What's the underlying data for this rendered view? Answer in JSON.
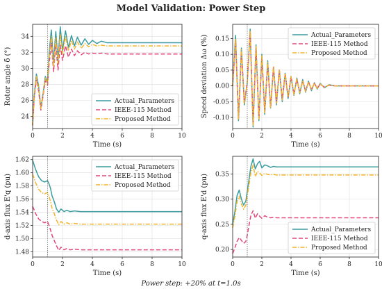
{
  "title": "Model Validation: Power Step",
  "footnote": "Power step: +20% at t=1.0s",
  "colors": {
    "actual": "#3a9ca0",
    "ieee": "#e3467a",
    "proposed": "#f5b42a",
    "vline": "#666666",
    "grid": "#dddddd"
  },
  "legend": [
    "Actual_Parameters",
    "IEEE-115 Method",
    "Proposed Method"
  ],
  "chart_data": [
    {
      "type": "line",
      "title": "",
      "xlabel": "Time (s)",
      "ylabel": "Rotor angle δ (°)",
      "xlim": [
        0,
        10
      ],
      "ylim": [
        22.5,
        35.5
      ],
      "xticks": [
        0,
        2,
        4,
        6,
        8,
        10
      ],
      "yticks": [
        24,
        26,
        28,
        30,
        32,
        34
      ],
      "ytick_labels": [
        "24",
        "26",
        "28",
        "30",
        "32",
        "34"
      ],
      "vline": 1.0,
      "grid": true,
      "legend_position": "lower-right",
      "series": [
        {
          "name": "Actual_Parameters",
          "color_key": "actual",
          "dash": "solid",
          "x": [
            0,
            0.1,
            0.25,
            0.4,
            0.55,
            0.7,
            0.85,
            1.0,
            1.1,
            1.25,
            1.4,
            1.55,
            1.7,
            1.85,
            2.0,
            2.2,
            2.4,
            2.6,
            2.8,
            3.0,
            3.25,
            3.5,
            3.75,
            4.0,
            4.3,
            4.6,
            5.0,
            6,
            7,
            8,
            9,
            10
          ],
          "y": [
            22.9,
            26.5,
            29.3,
            27.8,
            25.1,
            26.9,
            29.0,
            28.3,
            31.8,
            34.8,
            30.8,
            34.6,
            31.0,
            35.2,
            32.2,
            34.7,
            32.6,
            34.1,
            32.8,
            33.9,
            32.9,
            33.7,
            33.0,
            33.5,
            33.1,
            33.4,
            33.2,
            33.2,
            33.2,
            33.2,
            33.2,
            33.2
          ]
        },
        {
          "name": "IEEE-115 Method",
          "color_key": "ieee",
          "dash": "dashed",
          "x": [
            0,
            0.1,
            0.25,
            0.4,
            0.55,
            0.7,
            0.85,
            1.0,
            1.1,
            1.25,
            1.4,
            1.55,
            1.7,
            1.85,
            2.0,
            2.2,
            2.4,
            2.6,
            2.8,
            3.0,
            3.25,
            3.5,
            3.75,
            4.0,
            4.3,
            4.6,
            5.0,
            6,
            7,
            8,
            9,
            10
          ],
          "y": [
            22.9,
            26.1,
            28.7,
            27.2,
            24.8,
            26.6,
            28.5,
            27.9,
            30.5,
            33.2,
            29.6,
            33.0,
            29.8,
            32.9,
            31.0,
            32.8,
            31.4,
            32.4,
            31.6,
            32.2,
            31.7,
            32.0,
            31.8,
            31.9,
            31.8,
            31.9,
            31.8,
            31.8,
            31.8,
            31.8,
            31.8,
            31.8
          ]
        },
        {
          "name": "Proposed Method",
          "color_key": "proposed",
          "dash": "dashdot",
          "x": [
            0,
            0.1,
            0.25,
            0.4,
            0.55,
            0.7,
            0.85,
            1.0,
            1.1,
            1.25,
            1.4,
            1.55,
            1.7,
            1.85,
            2.0,
            2.2,
            2.4,
            2.6,
            2.8,
            3.0,
            3.25,
            3.5,
            3.75,
            4.0,
            4.3,
            4.6,
            5.0,
            6,
            7,
            8,
            9,
            10
          ],
          "y": [
            22.9,
            26.3,
            29.0,
            27.5,
            25.0,
            26.8,
            28.8,
            28.1,
            31.2,
            34.0,
            30.2,
            33.8,
            30.6,
            34.2,
            31.8,
            34.0,
            32.2,
            33.5,
            32.4,
            33.3,
            32.5,
            33.1,
            32.7,
            33.0,
            32.8,
            32.9,
            32.8,
            32.8,
            32.8,
            32.8,
            32.8,
            32.8
          ]
        }
      ]
    },
    {
      "type": "line",
      "title": "",
      "xlabel": "Time (s)",
      "ylabel": "Speed deviation Δω (%)",
      "xlim": [
        0,
        10
      ],
      "ylim": [
        -0.135,
        0.195
      ],
      "xticks": [
        0,
        2,
        4,
        6,
        8,
        10
      ],
      "yticks": [
        -0.1,
        -0.05,
        0.0,
        0.05,
        0.1,
        0.15
      ],
      "ytick_labels": [
        "-0.10",
        "-0.05",
        "0.00",
        "0.05",
        "0.10",
        "0.15"
      ],
      "vline": 1.0,
      "grid": true,
      "legend_position": "top-right",
      "series": [
        {
          "name": "Actual_Parameters",
          "color_key": "actual",
          "dash": "solid",
          "x": [
            0,
            0.2,
            0.4,
            0.6,
            0.8,
            1.0,
            1.2,
            1.4,
            1.6,
            1.8,
            2.0,
            2.2,
            2.4,
            2.6,
            2.8,
            3.0,
            3.2,
            3.4,
            3.6,
            3.8,
            4.0,
            4.2,
            4.4,
            4.6,
            4.8,
            5.0,
            5.2,
            5.4,
            5.6,
            5.8,
            6.0,
            6.3,
            6.6,
            7.0,
            7.5,
            8,
            9,
            10
          ],
          "y": [
            0.0,
            0.16,
            -0.11,
            0.12,
            -0.06,
            0.01,
            0.18,
            -0.13,
            0.13,
            -0.11,
            0.1,
            -0.09,
            0.08,
            -0.07,
            0.06,
            -0.06,
            0.05,
            -0.05,
            0.04,
            -0.04,
            0.03,
            -0.03,
            0.025,
            -0.025,
            0.02,
            -0.02,
            0.015,
            -0.015,
            0.01,
            -0.01,
            0.008,
            -0.006,
            0.004,
            0.0,
            0.0,
            0.0,
            0.0,
            0.0
          ]
        },
        {
          "name": "IEEE-115 Method",
          "color_key": "ieee",
          "dash": "dashed",
          "x": [
            0,
            0.2,
            0.4,
            0.6,
            0.8,
            1.0,
            1.2,
            1.4,
            1.6,
            1.8,
            2.0,
            2.2,
            2.4,
            2.6,
            2.8,
            3.0,
            3.2,
            3.4,
            3.6,
            3.8,
            4.0,
            4.2,
            4.4,
            4.6,
            4.8,
            5.0,
            5.2,
            5.4,
            5.6,
            5.8,
            6.0,
            6.3,
            6.6,
            7.0,
            7.5,
            8,
            9,
            10
          ],
          "y": [
            0.0,
            0.14,
            -0.1,
            0.11,
            -0.05,
            0.01,
            0.17,
            -0.12,
            0.12,
            -0.1,
            0.09,
            -0.08,
            0.07,
            -0.07,
            0.06,
            -0.05,
            0.05,
            -0.04,
            0.04,
            -0.035,
            0.03,
            -0.025,
            0.02,
            -0.02,
            0.015,
            -0.015,
            0.012,
            -0.01,
            0.008,
            -0.006,
            0.005,
            -0.004,
            0.002,
            0.0,
            0.0,
            0.0,
            0.0,
            0.0
          ]
        },
        {
          "name": "Proposed Method",
          "color_key": "proposed",
          "dash": "dashdot",
          "x": [
            0,
            0.2,
            0.4,
            0.6,
            0.8,
            1.0,
            1.2,
            1.4,
            1.6,
            1.8,
            2.0,
            2.2,
            2.4,
            2.6,
            2.8,
            3.0,
            3.2,
            3.4,
            3.6,
            3.8,
            4.0,
            4.2,
            4.4,
            4.6,
            4.8,
            5.0,
            5.2,
            5.4,
            5.6,
            5.8,
            6.0,
            6.3,
            6.6,
            7.0,
            7.5,
            8,
            9,
            10
          ],
          "y": [
            0.0,
            0.15,
            -0.105,
            0.115,
            -0.055,
            0.01,
            0.175,
            -0.125,
            0.125,
            -0.105,
            0.095,
            -0.085,
            0.075,
            -0.07,
            0.06,
            -0.055,
            0.05,
            -0.045,
            0.04,
            -0.035,
            0.03,
            -0.028,
            0.022,
            -0.022,
            0.018,
            -0.018,
            0.013,
            -0.012,
            0.009,
            -0.008,
            0.006,
            -0.005,
            0.003,
            0.0,
            0.0,
            0.0,
            0.0,
            0.0
          ]
        }
      ]
    },
    {
      "type": "line",
      "title": "",
      "xlabel": "Time (s)",
      "ylabel": "d-axis flux E'q (pu)",
      "xlim": [
        0,
        10
      ],
      "ylim": [
        1.472,
        1.625
      ],
      "xticks": [
        0,
        2,
        4,
        6,
        8,
        10
      ],
      "yticks": [
        1.48,
        1.5,
        1.52,
        1.54,
        1.56,
        1.58,
        1.6,
        1.62
      ],
      "ytick_labels": [
        "1.48",
        "1.50",
        "1.52",
        "1.54",
        "1.56",
        "1.58",
        "1.60",
        "1.62"
      ],
      "vline": 1.0,
      "grid": true,
      "legend_position": "top-right",
      "series": [
        {
          "name": "Actual_Parameters",
          "color_key": "actual",
          "dash": "solid",
          "x": [
            0,
            0.2,
            0.4,
            0.6,
            0.8,
            1.0,
            1.1,
            1.2,
            1.3,
            1.45,
            1.6,
            1.75,
            1.9,
            2.1,
            2.3,
            2.5,
            2.8,
            3.2,
            3.6,
            4.0,
            5,
            6,
            7,
            8,
            9,
            10
          ],
          "y": [
            1.619,
            1.605,
            1.594,
            1.588,
            1.586,
            1.588,
            1.583,
            1.576,
            1.565,
            1.556,
            1.545,
            1.54,
            1.545,
            1.541,
            1.543,
            1.541,
            1.542,
            1.541,
            1.541,
            1.541,
            1.541,
            1.541,
            1.541,
            1.541,
            1.541,
            1.541
          ]
        },
        {
          "name": "IEEE-115 Method",
          "color_key": "ieee",
          "dash": "dashed",
          "x": [
            0,
            0.2,
            0.4,
            0.6,
            0.8,
            1.0,
            1.1,
            1.2,
            1.3,
            1.45,
            1.6,
            1.75,
            1.9,
            2.1,
            2.3,
            2.5,
            2.8,
            3.2,
            3.6,
            4.0,
            5,
            6,
            7,
            8,
            9,
            10
          ],
          "y": [
            1.549,
            1.538,
            1.53,
            1.526,
            1.524,
            1.526,
            1.52,
            1.513,
            1.505,
            1.497,
            1.489,
            1.482,
            1.487,
            1.483,
            1.485,
            1.483,
            1.484,
            1.483,
            1.483,
            1.483,
            1.483,
            1.483,
            1.483,
            1.483,
            1.483,
            1.483
          ]
        },
        {
          "name": "Proposed Method",
          "color_key": "proposed",
          "dash": "dashdot",
          "x": [
            0,
            0.2,
            0.4,
            0.6,
            0.8,
            1.0,
            1.1,
            1.2,
            1.3,
            1.45,
            1.6,
            1.75,
            1.9,
            2.1,
            2.3,
            2.5,
            2.8,
            3.2,
            3.6,
            4.0,
            5,
            6,
            7,
            8,
            9,
            10
          ],
          "y": [
            1.598,
            1.585,
            1.575,
            1.57,
            1.568,
            1.57,
            1.564,
            1.556,
            1.546,
            1.538,
            1.528,
            1.521,
            1.526,
            1.522,
            1.524,
            1.522,
            1.523,
            1.522,
            1.522,
            1.522,
            1.522,
            1.522,
            1.522,
            1.522,
            1.522,
            1.522
          ]
        }
      ]
    },
    {
      "type": "line",
      "title": "",
      "xlabel": "Time (s)",
      "ylabel": "q-axis flux E'd (pu)",
      "xlim": [
        0,
        10
      ],
      "ylim": [
        0.185,
        0.385
      ],
      "xticks": [
        0,
        2,
        4,
        6,
        8,
        10
      ],
      "yticks": [
        0.2,
        0.25,
        0.3,
        0.35
      ],
      "ytick_labels": [
        "0.20",
        "0.25",
        "0.30",
        "0.35"
      ],
      "vline": 1.0,
      "grid": true,
      "legend_position": "lower-right",
      "series": [
        {
          "name": "Actual_Parameters",
          "color_key": "actual",
          "dash": "solid",
          "x": [
            0,
            0.15,
            0.3,
            0.45,
            0.6,
            0.75,
            0.9,
            1.0,
            1.1,
            1.25,
            1.4,
            1.55,
            1.7,
            1.85,
            2.0,
            2.2,
            2.4,
            2.6,
            2.8,
            3.0,
            3.3,
            3.6,
            4.0,
            5,
            6,
            7,
            8,
            9,
            10
          ],
          "y": [
            0.25,
            0.275,
            0.307,
            0.318,
            0.3,
            0.288,
            0.296,
            0.315,
            0.335,
            0.365,
            0.38,
            0.36,
            0.37,
            0.375,
            0.362,
            0.368,
            0.366,
            0.363,
            0.365,
            0.364,
            0.364,
            0.364,
            0.364,
            0.364,
            0.364,
            0.364,
            0.364,
            0.364,
            0.364
          ]
        },
        {
          "name": "IEEE-115 Method",
          "color_key": "ieee",
          "dash": "dashed",
          "x": [
            0,
            0.15,
            0.3,
            0.45,
            0.6,
            0.75,
            0.9,
            1.0,
            1.1,
            1.25,
            1.4,
            1.55,
            1.7,
            1.85,
            2.0,
            2.2,
            2.4,
            2.6,
            2.8,
            3.0,
            3.3,
            3.6,
            4.0,
            5,
            6,
            7,
            8,
            9,
            10
          ],
          "y": [
            0.192,
            0.203,
            0.216,
            0.224,
            0.218,
            0.212,
            0.216,
            0.228,
            0.245,
            0.268,
            0.277,
            0.262,
            0.271,
            0.266,
            0.262,
            0.267,
            0.264,
            0.263,
            0.264,
            0.263,
            0.263,
            0.263,
            0.263,
            0.263,
            0.263,
            0.263,
            0.263,
            0.263,
            0.263
          ]
        },
        {
          "name": "Proposed Method",
          "color_key": "proposed",
          "dash": "dashdot",
          "x": [
            0,
            0.15,
            0.3,
            0.45,
            0.6,
            0.75,
            0.9,
            1.0,
            1.1,
            1.25,
            1.4,
            1.55,
            1.7,
            1.85,
            2.0,
            2.2,
            2.4,
            2.6,
            2.8,
            3.0,
            3.3,
            3.6,
            4.0,
            5,
            6,
            7,
            8,
            9,
            10
          ],
          "y": [
            0.243,
            0.265,
            0.295,
            0.306,
            0.29,
            0.28,
            0.288,
            0.306,
            0.325,
            0.352,
            0.368,
            0.345,
            0.355,
            0.352,
            0.347,
            0.351,
            0.349,
            0.348,
            0.349,
            0.348,
            0.348,
            0.348,
            0.348,
            0.348,
            0.348,
            0.348,
            0.348,
            0.348,
            0.348
          ]
        }
      ]
    }
  ]
}
